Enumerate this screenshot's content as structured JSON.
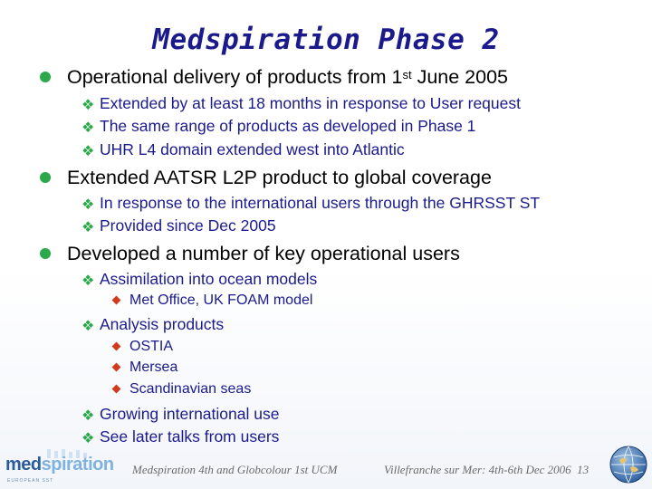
{
  "slide": {
    "title": "Medspiration Phase 2",
    "items": [
      {
        "text_pre": "Operational delivery of products from 1",
        "text_sup": "st",
        "text_post": " June 2005",
        "subs": [
          "Extended by at least 18 months in response to User request",
          "The same range of products as developed in Phase 1",
          "UHR L4 domain extended west into Atlantic"
        ]
      },
      {
        "text": "Extended AATSR L2P product to global coverage",
        "subs": [
          "In response to the international users through the GHRSST ST",
          "Provided since Dec 2005"
        ]
      },
      {
        "text": "Developed a number of key operational users",
        "subs": [
          {
            "text": "Assimilation into ocean models",
            "subs": [
              "Met Office, UK FOAM model"
            ]
          },
          {
            "text": "Analysis products",
            "subs": [
              "OSTIA",
              "Mersea",
              "Scandinavian seas"
            ]
          },
          {
            "text": "Growing international use"
          },
          {
            "text": "See later talks from users"
          }
        ]
      }
    ]
  },
  "footer": {
    "left": "Medspiration 4th and Globcolour 1st UCM",
    "right": "Villefranche sur Mer: 4th-6th Dec 2006",
    "page_number": "13"
  },
  "logo": {
    "word_a": "med",
    "word_b": "spiration",
    "tagline": "EUROPEAN SST"
  },
  "colors": {
    "title": "#1a1a8c",
    "level1_bullet": "#2aa84a",
    "level2_text": "#1a1a8c",
    "level3_bullet": "#d23a1e"
  },
  "icons": {
    "level1": "filled-circle",
    "level2": "diamond-star",
    "level3": "diamond"
  }
}
